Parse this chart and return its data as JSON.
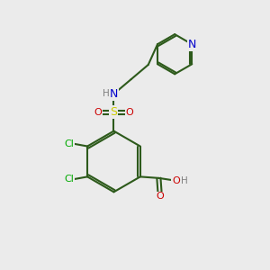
{
  "background_color": "#ebebeb",
  "bond_color": "#2d5a1b",
  "bond_width": 1.5,
  "atom_colors": {
    "C": "#2d5a1b",
    "H": "#808080",
    "N": "#0000cc",
    "O": "#cc0000",
    "S": "#cccc00",
    "Cl": "#00aa00"
  },
  "figsize": [
    3.0,
    3.0
  ],
  "dpi": 100
}
